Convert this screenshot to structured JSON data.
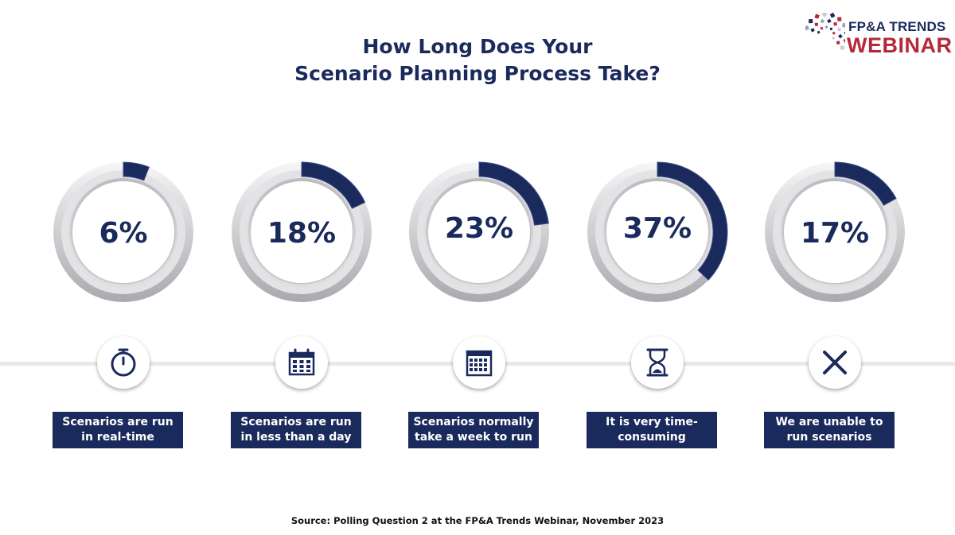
{
  "title": {
    "line1": "How Long Does Your",
    "line2": "Scenario Planning Process Take?"
  },
  "logo": {
    "line1": "FP&A TRENDS",
    "line2": "WEBINAR",
    "icon": "fpa-trends-logo-icon"
  },
  "colors": {
    "navy": "#1b2a5c",
    "brand_red": "#b3293a",
    "ring_gray": "#d9d9dd"
  },
  "chart_data": {
    "type": "pie",
    "categories": [
      "Scenarios are run in real-time",
      "Scenarios are run in less than a day",
      "Scenarios normally take a week to run",
      "It is very time-consuming",
      "We are unable to run scenarios"
    ],
    "values": [
      6,
      18,
      23,
      37,
      17
    ],
    "value_labels": [
      "6%",
      "18%",
      "23%",
      "37%",
      "17%"
    ]
  },
  "options": [
    {
      "pct": "6%",
      "value": 6,
      "icon": "stopwatch-icon",
      "label_line1": "Scenarios are run",
      "label_line2": "in real-time"
    },
    {
      "pct": "18%",
      "value": 18,
      "icon": "calendar-icon",
      "label_line1": "Scenarios are run",
      "label_line2": "in less than a day"
    },
    {
      "pct": "23%",
      "value": 23,
      "icon": "calendar-grid-icon",
      "label_line1": "Scenarios normally",
      "label_line2": "take a week to run"
    },
    {
      "pct": "37%",
      "value": 37,
      "icon": "hourglass-icon",
      "label_line1": "It is very time-",
      "label_line2": "consuming"
    },
    {
      "pct": "17%",
      "value": 17,
      "icon": "close-x-icon",
      "label_line1": "We are unable to",
      "label_line2": "run scenarios"
    }
  ],
  "source": "Source: Polling Question 2 at the FP&A Trends Webinar, November 2023"
}
